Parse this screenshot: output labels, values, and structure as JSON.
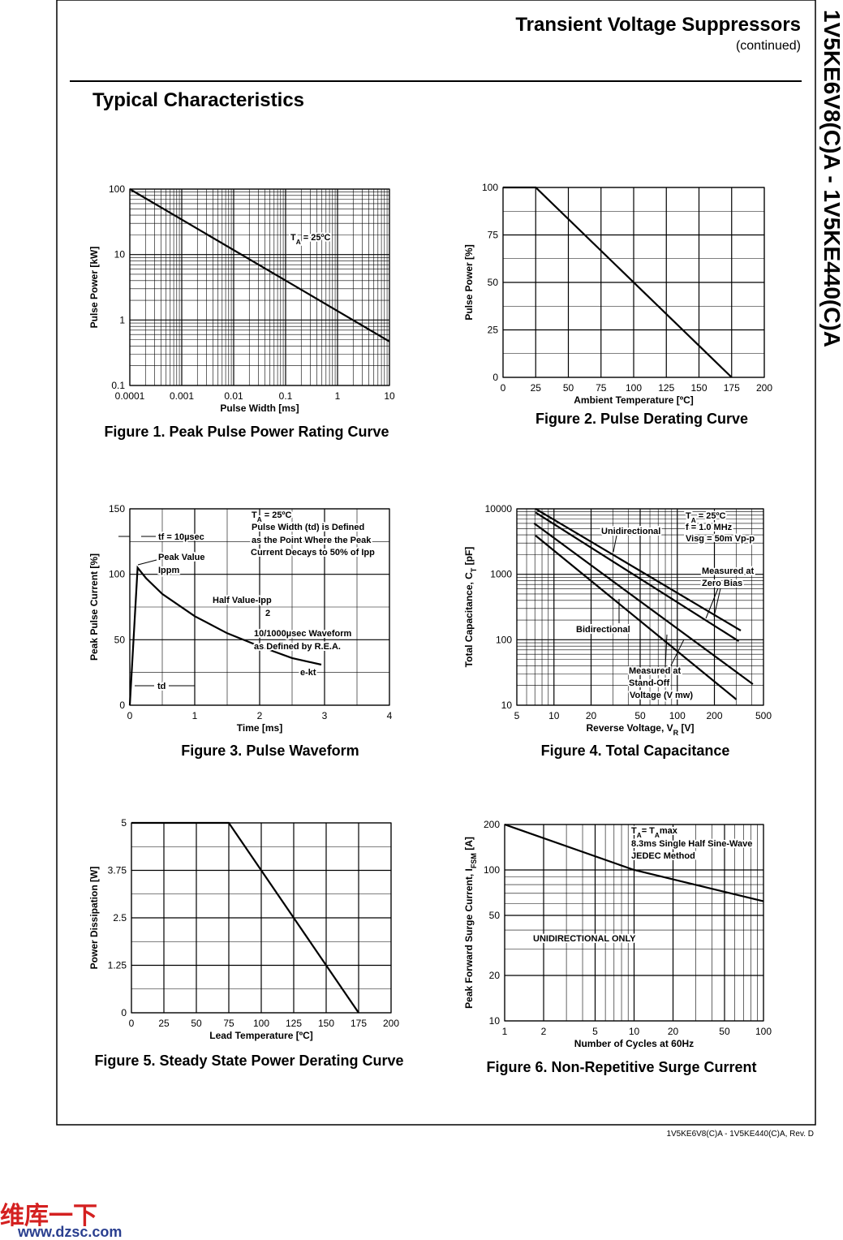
{
  "header": {
    "title": "Transient Voltage Suppressors",
    "subtitle": "(continued)"
  },
  "side_title": "1V5KE6V8(C)A - 1V5KE440(C)A",
  "section_title": "Typical Characteristics",
  "footer": "1V5KE6V8(C)A - 1V5KE440(C)A, Rev. D",
  "watermark": [
    "维库一下",
    "www.dzsc.com"
  ],
  "chart_data": [
    {
      "type": "line",
      "caption": "Figure 1. Peak Pulse Power Rating Curve",
      "xlabel": "Pulse Width [ms]",
      "ylabel": "Pulse Power [kW]",
      "xlog": true,
      "ylog": true,
      "grid": true,
      "xlim": [
        0.0001,
        10
      ],
      "ylim": [
        0.1,
        100
      ],
      "xticks": [
        0.0001,
        0.001,
        0.01,
        0.1,
        1,
        10
      ],
      "yticks": [
        0.1,
        1,
        10,
        100
      ],
      "annotations": [
        [
          "T",
          "A",
          " = 25ºC"
        ]
      ],
      "series": [
        {
          "color": "#000000",
          "x": [
            0.0001,
            10
          ],
          "values": [
            100,
            0.47
          ]
        }
      ]
    },
    {
      "type": "line",
      "caption": "Figure 2. Pulse Derating Curve",
      "xlabel": "Ambient Temperature [ºC]",
      "ylabel": "Pulse Power [%]",
      "xlog": false,
      "ylog": false,
      "grid": true,
      "xlim": [
        0,
        200
      ],
      "ylim": [
        0,
        100
      ],
      "xticks": [
        0,
        25,
        50,
        75,
        100,
        125,
        150,
        175,
        200
      ],
      "yticks": [
        0,
        25,
        50,
        75,
        100
      ],
      "annotations": [],
      "series": [
        {
          "color": "#000000",
          "x": [
            0,
            25,
            175
          ],
          "values": [
            100,
            100,
            0
          ]
        }
      ]
    },
    {
      "type": "line",
      "caption": "Figure 3. Pulse Waveform",
      "xlabel": "Time [ms]",
      "ylabel": "Peak Pulse Current [%]",
      "xlog": false,
      "ylog": false,
      "grid": true,
      "xlim": [
        0,
        4
      ],
      "ylim": [
        0,
        150
      ],
      "xticks": [
        0,
        1,
        2,
        3,
        4
      ],
      "yticks": [
        0,
        50,
        100,
        150
      ],
      "annotations": [
        "tf = 10µsec",
        "Peak Value",
        "Ippm",
        "Half Value-Ipp",
        "2",
        [
          "T",
          "A",
          " = 25ºC"
        ],
        "Pulse Width (td) is Defined",
        "as the Point Where the Peak",
        "Current Decays to 50% of Ipp",
        "10/1000µsec Waveform",
        "as Defined by R.E.A.",
        "e-kt",
        "td"
      ],
      "series": [
        {
          "color": "#000000",
          "x": [
            0,
            0.12,
            0.25,
            0.5,
            1,
            1.5,
            2,
            2.5,
            2.95
          ],
          "values": [
            0,
            105,
            97,
            85,
            68,
            55,
            45,
            36,
            31
          ]
        }
      ]
    },
    {
      "type": "line",
      "caption": "Figure 4. Total Capacitance",
      "xlabel": [
        "Reverse Voltage, V",
        "R",
        " [V]"
      ],
      "ylabel": [
        "Total Capacitance, C",
        "T",
        " [pF]"
      ],
      "xlog": true,
      "ylog": true,
      "grid": true,
      "xlim": [
        5,
        500
      ],
      "ylim": [
        10,
        10000
      ],
      "xticks": [
        5,
        10,
        20,
        50,
        100,
        200,
        500
      ],
      "yticks": [
        10,
        100,
        1000,
        10000
      ],
      "annotations": [
        "Unidirectional",
        "Bidirectional",
        [
          "T",
          "A",
          " = 25ºC"
        ],
        "f = 1.0 MHz",
        "Visg = 50m Vp-p",
        "Measured at",
        "Zero Bias",
        "Measured at",
        "Stand-Off",
        "Voltage (V mw)"
      ],
      "series": [
        {
          "color": "#000000",
          "x": [
            7.1,
            327
          ],
          "values": [
            10000,
            138
          ]
        },
        {
          "color": "#000000",
          "x": [
            7.1,
            315
          ],
          "values": [
            8800,
            95
          ]
        },
        {
          "color": "#000000",
          "x": [
            6.9,
            410
          ],
          "values": [
            6000,
            21
          ]
        },
        {
          "color": "#000000",
          "x": [
            7.1,
            302
          ],
          "values": [
            3900,
            12.2
          ]
        }
      ]
    },
    {
      "type": "line",
      "caption": "Figure 5. Steady State Power Derating Curve",
      "xlabel": "Lead Temperature [ºC]",
      "ylabel": "Power Dissipation [W]",
      "xlog": false,
      "ylog": false,
      "grid": true,
      "xlim": [
        0,
        200
      ],
      "ylim": [
        0,
        5
      ],
      "xticks": [
        0,
        25,
        50,
        75,
        100,
        125,
        150,
        175,
        200
      ],
      "yticks": [
        0,
        1.25,
        2.5,
        3.75,
        5
      ],
      "annotations": [],
      "series": [
        {
          "color": "#000000",
          "x": [
            0,
            75,
            175
          ],
          "values": [
            5,
            5,
            0
          ]
        }
      ]
    },
    {
      "type": "line",
      "caption": "Figure 6. Non-Repetitive Surge Current",
      "xlabel": "Number of Cycles at 60Hz",
      "ylabel": [
        "Peak Forward Surge Current, I",
        "FSM",
        " [A]"
      ],
      "xlog": true,
      "ylog": true,
      "grid": true,
      "xlim": [
        1,
        100
      ],
      "ylim": [
        10,
        200
      ],
      "xticks": [
        1,
        2,
        5,
        10,
        20,
        50,
        100
      ],
      "yticks": [
        10,
        20,
        50,
        100,
        200
      ],
      "annotations": [
        [
          "T",
          "A",
          "= T",
          "A",
          "max"
        ],
        "8.3ms Single Half Sine-Wave",
        "JEDEC Method",
        "UNIDIRECTIONAL ONLY"
      ],
      "series": [
        {
          "color": "#000000",
          "x": [
            1,
            10,
            100
          ],
          "values": [
            200,
            100,
            62
          ]
        }
      ]
    }
  ]
}
